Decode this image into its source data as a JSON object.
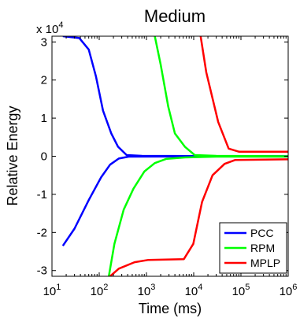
{
  "chart_data": {
    "type": "line",
    "title": "Medium",
    "xlabel": "Time (ms)",
    "ylabel": "Relative Energy",
    "x_scale": "log",
    "xlim": [
      10,
      1000000
    ],
    "ylim": [
      -3.15,
      3.15
    ],
    "y_multiplier": "x 10",
    "y_multiplier_exp": "4",
    "x_ticks": [
      {
        "value": 10,
        "base": "10",
        "exp": "1"
      },
      {
        "value": 100,
        "base": "10",
        "exp": "2"
      },
      {
        "value": 1000,
        "base": "10",
        "exp": "3"
      },
      {
        "value": 10000,
        "base": "10",
        "exp": "4"
      },
      {
        "value": 100000,
        "base": "10",
        "exp": "5"
      },
      {
        "value": 1000000,
        "base": "10",
        "exp": "6"
      }
    ],
    "y_ticks": [
      {
        "value": 3,
        "label": "3"
      },
      {
        "value": 2,
        "label": "2"
      },
      {
        "value": 1,
        "label": "1"
      },
      {
        "value": 0,
        "label": "0"
      },
      {
        "value": -1,
        "label": "-1"
      },
      {
        "value": -2,
        "label": "-2"
      },
      {
        "value": -3,
        "label": "-3"
      }
    ],
    "grid": false,
    "legend_position": "bottom-right",
    "series": [
      {
        "name": "PCC",
        "color": "#0000ff",
        "lines": [
          [
            [
              17,
              3.15
            ],
            [
              38,
              3.1
            ],
            [
              60,
              2.8
            ],
            [
              85,
              2.1
            ],
            [
              120,
              1.2
            ],
            [
              180,
              0.6
            ],
            [
              250,
              0.25
            ],
            [
              380,
              0.03
            ],
            [
              800,
              0.01
            ],
            [
              1000000,
              0.0
            ]
          ],
          [
            [
              17,
              -2.35
            ],
            [
              30,
              -1.9
            ],
            [
              60,
              -1.15
            ],
            [
              110,
              -0.55
            ],
            [
              170,
              -0.22
            ],
            [
              260,
              -0.06
            ],
            [
              420,
              -0.01
            ],
            [
              1000000,
              0.0
            ]
          ]
        ]
      },
      {
        "name": "RPM",
        "color": "#00ff00",
        "lines": [
          [
            [
              1500,
              3.15
            ],
            [
              2000,
              2.4
            ],
            [
              2900,
              1.3
            ],
            [
              4000,
              0.6
            ],
            [
              6500,
              0.25
            ],
            [
              10500,
              0.03
            ],
            [
              30000,
              0.01
            ],
            [
              1000000,
              0.0
            ]
          ],
          [
            [
              160,
              -3.15
            ],
            [
              210,
              -2.3
            ],
            [
              330,
              -1.4
            ],
            [
              530,
              -0.85
            ],
            [
              900,
              -0.4
            ],
            [
              1500,
              -0.18
            ],
            [
              2600,
              -0.07
            ],
            [
              6500,
              -0.03
            ],
            [
              30000,
              -0.01
            ],
            [
              1000000,
              -0.01
            ]
          ]
        ]
      },
      {
        "name": "MPLP",
        "color": "#ff0000",
        "lines": [
          [
            [
              14000,
              3.15
            ],
            [
              18500,
              2.2
            ],
            [
              33000,
              0.9
            ],
            [
              55000,
              0.2
            ],
            [
              90000,
              0.12
            ],
            [
              1000000,
              0.12
            ]
          ],
          [
            [
              170,
              -3.15
            ],
            [
              260,
              -2.95
            ],
            [
              560,
              -2.78
            ],
            [
              1100,
              -2.72
            ],
            [
              6200,
              -2.7
            ],
            [
              9800,
              -2.3
            ],
            [
              15000,
              -1.2
            ],
            [
              25000,
              -0.5
            ],
            [
              45000,
              -0.2
            ],
            [
              75000,
              -0.1
            ],
            [
              1000000,
              -0.08
            ]
          ]
        ]
      }
    ]
  }
}
